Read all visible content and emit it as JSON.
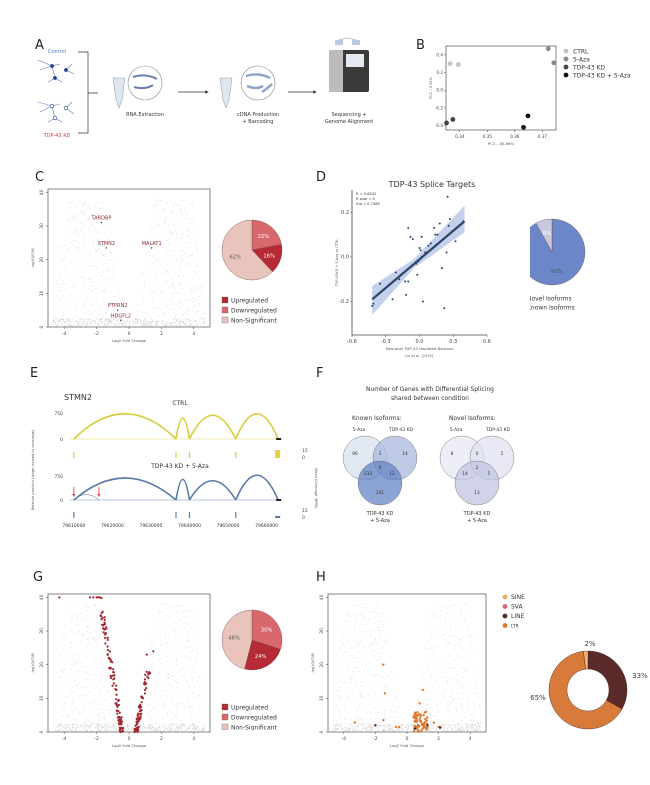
{
  "panels": [
    "A",
    "B",
    "C",
    "D",
    "E",
    "F",
    "G",
    "H"
  ],
  "panelA": {
    "conditions": {
      "control": "Control",
      "kd": "TDP-43 KD"
    },
    "steps": [
      "RNA Extraction",
      "cDNA Production",
      "+ Barcoding",
      "Sequencing +",
      "Genome Alignment"
    ],
    "colors": {
      "control": "#4a7fc1",
      "kd": "#d0453a"
    }
  },
  "chart_data": [
    {
      "id": "B",
      "type": "scatter",
      "title": "",
      "xlabel": "PC1 – 85.86%",
      "ylabel": "PC2 – 0.32%",
      "xlim": [
        0.335,
        0.375
      ],
      "ylim": [
        -0.45,
        0.5
      ],
      "xticks": [
        "0.34",
        "0.35",
        "0.36",
        "0.37"
      ],
      "xtick_values": [
        0.34,
        0.35,
        0.36,
        0.37
      ],
      "yticks": [
        "0.4",
        "0.2",
        "0.0",
        "-0.2",
        "-0.4"
      ],
      "ytick_values": [
        0.4,
        0.2,
        0.0,
        -0.2,
        -0.4
      ],
      "legend": "right",
      "series": [
        {
          "name": "CTRL",
          "color": "#c4c4c4",
          "points": [
            [
              0.3365,
              0.3
            ],
            [
              0.3395,
              0.29
            ]
          ]
        },
        {
          "name": "5-Aza",
          "color": "#8a8a8a",
          "points": [
            [
              0.3722,
              0.47
            ],
            [
              0.3742,
              0.31
            ]
          ]
        },
        {
          "name": "TDP-43 KD",
          "color": "#444444",
          "points": [
            [
              0.3352,
              -0.37
            ],
            [
              0.3375,
              -0.33
            ]
          ]
        },
        {
          "name": "TDP-43 KD + 5-Aza",
          "color": "#111111",
          "points": [
            [
              0.3632,
              -0.42
            ],
            [
              0.3648,
              -0.29
            ]
          ]
        }
      ]
    },
    {
      "id": "C-volcano",
      "type": "scatter",
      "xlabel": "Log2 Fold Change",
      "ylabel": "-log10(FDR)",
      "xlim": [
        -5,
        5
      ],
      "ylim": [
        0,
        41
      ],
      "xticks": [
        "-4",
        "-2",
        "0",
        "2",
        "4"
      ],
      "xtick_values": [
        -4,
        -2,
        0,
        2,
        4
      ],
      "yticks": [
        "0",
        "10",
        "20",
        "30",
        "40"
      ],
      "ytick_values": [
        0,
        10,
        20,
        30,
        40
      ],
      "annotations": [
        {
          "label": "TARDBP",
          "x": -1.7,
          "y": 31
        },
        {
          "label": "STMN2",
          "x": -1.4,
          "y": 23.5
        },
        {
          "label": "MALAT1",
          "x": 1.4,
          "y": 23.5
        },
        {
          "label": "PTPRN2",
          "x": -0.7,
          "y": 5
        },
        {
          "label": "HDGFL2",
          "x": -0.5,
          "y": 2
        }
      ]
    },
    {
      "id": "C-pie",
      "type": "pie",
      "slices": [
        {
          "label": "Upregulated",
          "value": 16,
          "text": "16%",
          "color": "#b52a35"
        },
        {
          "label": "Downregulated",
          "value": 22,
          "text": "22%",
          "color": "#d8686b"
        },
        {
          "label": "Non-Significant",
          "value": 62,
          "text": "62%",
          "color": "#e8c4bc"
        }
      ]
    },
    {
      "id": "D",
      "type": "scatter",
      "title": "TDP-43 Splice Targets",
      "xlabel": "Neuronal TDP-43 Depleted Neurons",
      "xlabel2": "Liu et al. (2019)",
      "ylabel": "TDP-43KD + 5-Aza vs CTRL",
      "xlim": [
        -0.6,
        0.6
      ],
      "ylim": [
        -0.35,
        0.3
      ],
      "xticks": [
        "-0.6",
        "-0.3",
        "0.0",
        "0.3",
        "0.6"
      ],
      "xtick_values": [
        -0.6,
        -0.3,
        0.0,
        0.3,
        0.6
      ],
      "yticks": [
        "0.2",
        "0.0",
        "-0.2"
      ],
      "ytick_values": [
        0.2,
        0.0,
        -0.2
      ],
      "stats": [
        "R = 0.6542",
        "R pval = 0",
        "rho = 0.7485"
      ],
      "fit": {
        "x": [
          -0.42,
          0.4
        ],
        "y": [
          -0.19,
          0.16
        ]
      },
      "points": [
        [
          -0.42,
          -0.22
        ],
        [
          -0.41,
          -0.21
        ],
        [
          -0.35,
          -0.12
        ],
        [
          -0.24,
          -0.19
        ],
        [
          -0.21,
          -0.07
        ],
        [
          -0.18,
          -0.1
        ],
        [
          -0.13,
          -0.11
        ],
        [
          -0.12,
          -0.17
        ],
        [
          -0.1,
          -0.11
        ],
        [
          -0.1,
          0.13
        ],
        [
          -0.08,
          0.09
        ],
        [
          -0.06,
          0.08
        ],
        [
          -0.03,
          -0.03
        ],
        [
          -0.02,
          -0.08
        ],
        [
          0.0,
          0.04
        ],
        [
          0.01,
          0.03
        ],
        [
          0.02,
          0.09
        ],
        [
          0.02,
          0.0
        ],
        [
          0.03,
          -0.2
        ],
        [
          0.05,
          0.02
        ],
        [
          0.06,
          0.02
        ],
        [
          0.1,
          0.06
        ],
        [
          0.13,
          0.13
        ],
        [
          0.14,
          0.1
        ],
        [
          0.16,
          0.1
        ],
        [
          0.18,
          0.15
        ],
        [
          0.2,
          -0.05
        ],
        [
          0.22,
          -0.23
        ],
        [
          0.24,
          0.02
        ],
        [
          0.25,
          0.27
        ],
        [
          0.26,
          0.14
        ],
        [
          0.27,
          0.17
        ],
        [
          0.32,
          0.07
        ],
        [
          0.39,
          0.16
        ],
        [
          -0.01,
          -0.02
        ],
        [
          0.08,
          0.05
        ]
      ]
    },
    {
      "id": "D-pie",
      "type": "pie",
      "slices": [
        {
          "label": "Novel Isoforms",
          "value": 8,
          "text": "8%",
          "color": "#c8c8de"
        },
        {
          "label": "Known Isoforms",
          "value": 92,
          "text": "92%",
          "color": "#6b87c8"
        }
      ]
    },
    {
      "id": "E",
      "type": "line",
      "title": "STMN2",
      "tracks": [
        {
          "name": "CTRL",
          "color": "#d9cc3a",
          "yticks": [
            "750",
            "0"
          ]
        },
        {
          "name": "TDP-43 KD + 5-Aza",
          "color": "#5a7aa8",
          "yticks": [
            "750",
            "0"
          ]
        }
      ],
      "coverage_ticks": [
        "15",
        "0"
      ],
      "ylabel": "Relative Junction Usage (scaled to coverage)",
      "ylabel_right": "Mean Coverage (RPM)",
      "xticks": [
        "79610000",
        "79620000",
        "79630000",
        "79640000",
        "79650000",
        "79660000"
      ],
      "xtick_values": [
        79610000,
        79620000,
        79630000,
        79640000,
        79650000,
        79660000
      ],
      "xlim": [
        79609000,
        79664000
      ],
      "junction_arcs_ctrl": [
        [
          79610000,
          79636500,
          0.85
        ],
        [
          79636500,
          79640000,
          0.7
        ],
        [
          79640000,
          79652000,
          0.8
        ],
        [
          79652000,
          79663000,
          0.85
        ]
      ],
      "junction_arcs_kd": [
        [
          79610000,
          79636500,
          0.8
        ],
        [
          79636500,
          79640000,
          0.75
        ],
        [
          79640000,
          79652000,
          0.7
        ],
        [
          79652000,
          79663000,
          0.9
        ],
        [
          79610000,
          79616500,
          0.2
        ]
      ],
      "arrows_x": [
        79610000,
        79616500
      ]
    },
    {
      "id": "G-volcano",
      "type": "scatter",
      "xlabel": "Log2 Fold Change",
      "ylabel": "-log10(FDR)",
      "xlim": [
        -5,
        5
      ],
      "ylim": [
        0,
        41
      ],
      "xticks": [
        "-4",
        "-2",
        "0",
        "2",
        "4"
      ],
      "xtick_values": [
        -4,
        -2,
        0,
        2,
        4
      ],
      "yticks": [
        "0",
        "10",
        "20",
        "30",
        "40"
      ],
      "ytick_values": [
        0,
        10,
        20,
        30,
        40
      ]
    },
    {
      "id": "G-pie",
      "type": "pie",
      "slices": [
        {
          "label": "Upregulated",
          "value": 24,
          "text": "24%",
          "color": "#b52a35"
        },
        {
          "label": "Downregulated",
          "value": 30,
          "text": "30%",
          "color": "#d8686b"
        },
        {
          "label": "Non-Significant",
          "value": 46,
          "text": "46%",
          "color": "#e8c4bc"
        }
      ]
    },
    {
      "id": "H-volcano",
      "type": "scatter",
      "xlabel": "Log2 Fold Change",
      "ylabel": "-log10(FDR)",
      "xlim": [
        -5,
        5
      ],
      "ylim": [
        0,
        41
      ],
      "xticks": [
        "-4",
        "-2",
        "0",
        "2",
        "4"
      ],
      "xtick_values": [
        -4,
        -2,
        0,
        2,
        4
      ],
      "yticks": [
        "0",
        "10",
        "20",
        "30",
        "40"
      ],
      "ytick_values": [
        0,
        10,
        20,
        30,
        40
      ],
      "legend": [
        {
          "label": "SINE",
          "color": "#f0a860"
        },
        {
          "label": "SVA",
          "color": "#e06070"
        },
        {
          "label": "LINE",
          "color": "#5a2a2a"
        },
        {
          "label": "LTR",
          "color": "#e07a30"
        }
      ]
    },
    {
      "id": "H-donut",
      "type": "pie",
      "slices": [
        {
          "label": "SINE",
          "value": 2,
          "text": "2%",
          "color": "#f0b070"
        },
        {
          "label": "LINE",
          "value": 33,
          "text": "33%",
          "color": "#5a2a28"
        },
        {
          "label": "LTR",
          "value": 65,
          "text": "65%",
          "color": "#d87a3a"
        }
      ]
    }
  ],
  "panelF": {
    "title_line1": "Number  of Genes with Differential Splicing",
    "title_line2": "shared between condition",
    "known": {
      "title": "Known Isoforms:",
      "labels": {
        "a": "5-Aza",
        "b": "TDP-43 KD",
        "c1": "TDP-43 KD",
        "c2": "+ 5-Aza"
      },
      "values": {
        "a": "96",
        "ab": "3",
        "b": "14",
        "abc": "9",
        "ac": "232",
        "bc": "12",
        "c": "141"
      },
      "colors": {
        "a": "#dfe5f1",
        "b": "#a9b9de",
        "c": "#6585c6"
      }
    },
    "novel": {
      "title": "Novel Isoforms:",
      "labels": {
        "a": "5-Aza",
        "b": "TDP-43 KD",
        "c1": "TDP-43 KD",
        "c2": "+ 5-Aza"
      },
      "values": {
        "a": "8",
        "ab": "0",
        "b": "1",
        "abc": "2",
        "ac": "14",
        "bc": "5",
        "c": "13"
      },
      "colors": {
        "a": "#ecedf5",
        "b": "#e0e2f0",
        "c": "#c2c5e2"
      }
    }
  }
}
